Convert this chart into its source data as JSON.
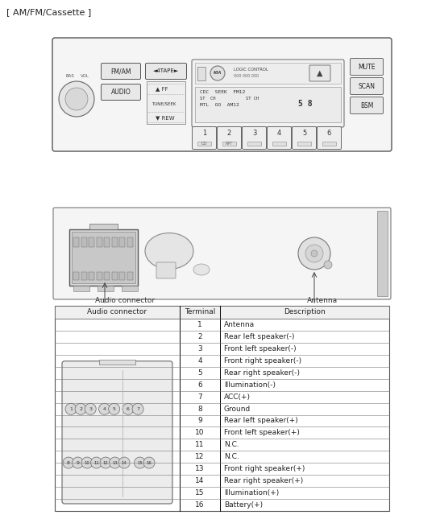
{
  "title": "[ AM/FM/Cassette ]",
  "bg_color": "#ffffff",
  "table_headers": [
    "Audio connector",
    "Terminal",
    "Description"
  ],
  "terminals": [
    1,
    2,
    3,
    4,
    5,
    6,
    7,
    8,
    9,
    10,
    11,
    12,
    13,
    14,
    15,
    16
  ],
  "descriptions": [
    "Antenna",
    "Rear left speaker(-)",
    "Front left speaker(-)",
    "Front right speaker(-)",
    "Rear right speaker(-)",
    "Illumination(-)",
    "ACC(+)",
    "Ground",
    "Rear left speaker(+)",
    "Front left speaker(+)",
    "N.C.",
    "N.C.",
    "Front right speaker(+)",
    "Rear right speaker(+)",
    "Illumination(+)",
    "Battery(+)"
  ],
  "audio_connector_label": "Audio connector",
  "antenna_label": "Antenna",
  "font_size_title": 8,
  "font_size_table": 6.5,
  "font_size_labels": 6.5
}
